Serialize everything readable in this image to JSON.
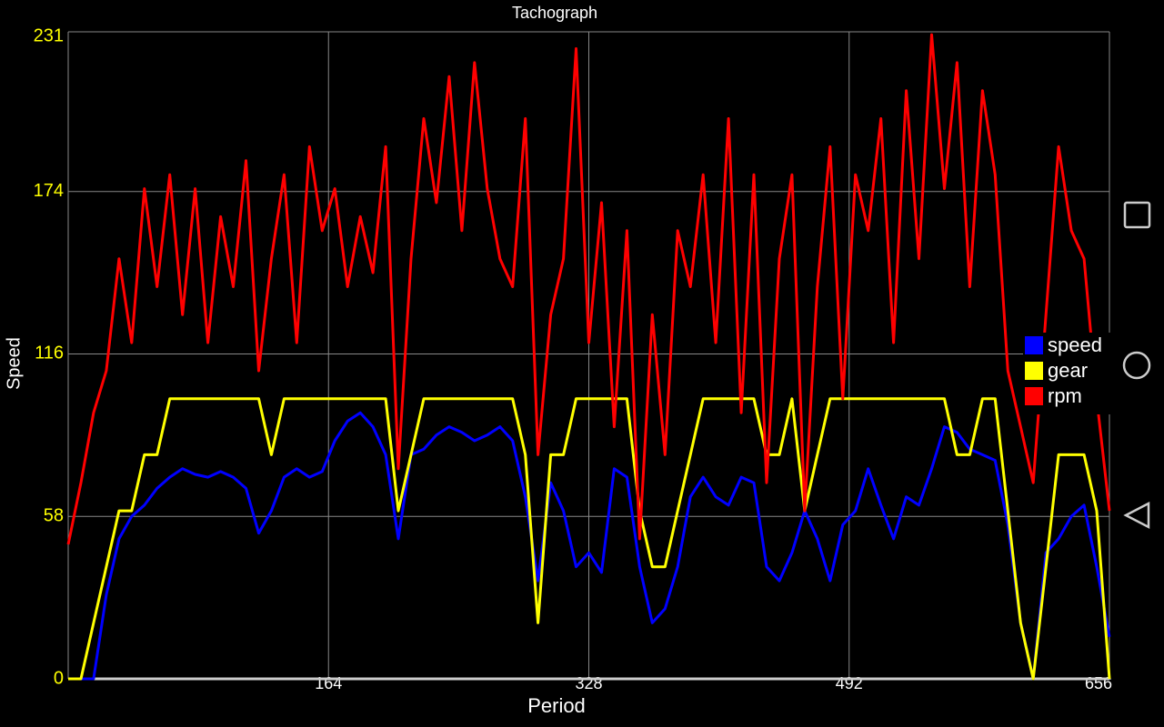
{
  "chart_data": {
    "type": "line",
    "title": "Tachograph",
    "xlabel": "Period",
    "ylabel": "Speed",
    "x": [
      0,
      8,
      16,
      24,
      32,
      40,
      48,
      56,
      64,
      72,
      80,
      88,
      96,
      104,
      112,
      120,
      128,
      136,
      144,
      152,
      160,
      168,
      176,
      184,
      192,
      200,
      208,
      216,
      224,
      232,
      240,
      248,
      256,
      264,
      272,
      280,
      288,
      296,
      304,
      312,
      320,
      328,
      336,
      344,
      352,
      360,
      368,
      376,
      384,
      392,
      400,
      408,
      416,
      424,
      432,
      440,
      448,
      456,
      464,
      472,
      480,
      488,
      496,
      504,
      512,
      520,
      528,
      536,
      544,
      552,
      560,
      568,
      576,
      584,
      592,
      600,
      608,
      616,
      624,
      632,
      640,
      648,
      656
    ],
    "xlim": [
      0,
      656
    ],
    "xticks": [
      164,
      328,
      492,
      656
    ],
    "ylim": [
      0,
      231
    ],
    "yticks": [
      0,
      58,
      116,
      174,
      231
    ],
    "grid": true,
    "legend": "right",
    "series": [
      {
        "name": "speed",
        "color": "#0000ff",
        "values": [
          0,
          0,
          0,
          30,
          50,
          58,
          62,
          68,
          72,
          75,
          73,
          72,
          74,
          72,
          68,
          52,
          60,
          72,
          75,
          72,
          74,
          85,
          92,
          95,
          90,
          80,
          50,
          80,
          82,
          87,
          90,
          88,
          85,
          87,
          90,
          85,
          65,
          35,
          70,
          60,
          40,
          45,
          38,
          75,
          72,
          40,
          20,
          25,
          40,
          65,
          72,
          65,
          62,
          72,
          70,
          40,
          35,
          45,
          60,
          50,
          35,
          55,
          60,
          75,
          62,
          50,
          65,
          62,
          75,
          90,
          88,
          82,
          80,
          78,
          55,
          20,
          0,
          45,
          50,
          58,
          62,
          40,
          15
        ]
      },
      {
        "name": "gear",
        "color": "#ffff00",
        "values": [
          0,
          0,
          20,
          40,
          60,
          60,
          80,
          80,
          100,
          100,
          100,
          100,
          100,
          100,
          100,
          100,
          80,
          100,
          100,
          100,
          100,
          100,
          100,
          100,
          100,
          100,
          60,
          80,
          100,
          100,
          100,
          100,
          100,
          100,
          100,
          100,
          80,
          20,
          80,
          80,
          100,
          100,
          100,
          100,
          100,
          60,
          40,
          40,
          60,
          80,
          100,
          100,
          100,
          100,
          100,
          80,
          80,
          100,
          60,
          80,
          100,
          100,
          100,
          100,
          100,
          100,
          100,
          100,
          100,
          100,
          80,
          80,
          100,
          100,
          60,
          20,
          0,
          40,
          80,
          80,
          80,
          60,
          0
        ]
      },
      {
        "name": "rpm",
        "color": "#ff0000",
        "values": [
          48,
          70,
          95,
          110,
          150,
          120,
          175,
          140,
          180,
          130,
          175,
          120,
          165,
          140,
          185,
          110,
          150,
          180,
          120,
          190,
          160,
          175,
          140,
          165,
          145,
          190,
          75,
          150,
          200,
          170,
          215,
          160,
          220,
          175,
          150,
          140,
          200,
          80,
          130,
          150,
          225,
          120,
          170,
          90,
          160,
          50,
          130,
          80,
          160,
          140,
          180,
          120,
          200,
          95,
          180,
          70,
          150,
          180,
          60,
          140,
          190,
          100,
          180,
          160,
          200,
          120,
          210,
          150,
          230,
          175,
          220,
          140,
          210,
          180,
          110,
          90,
          70,
          130,
          190,
          160,
          150,
          100,
          60
        ]
      }
    ]
  }
}
